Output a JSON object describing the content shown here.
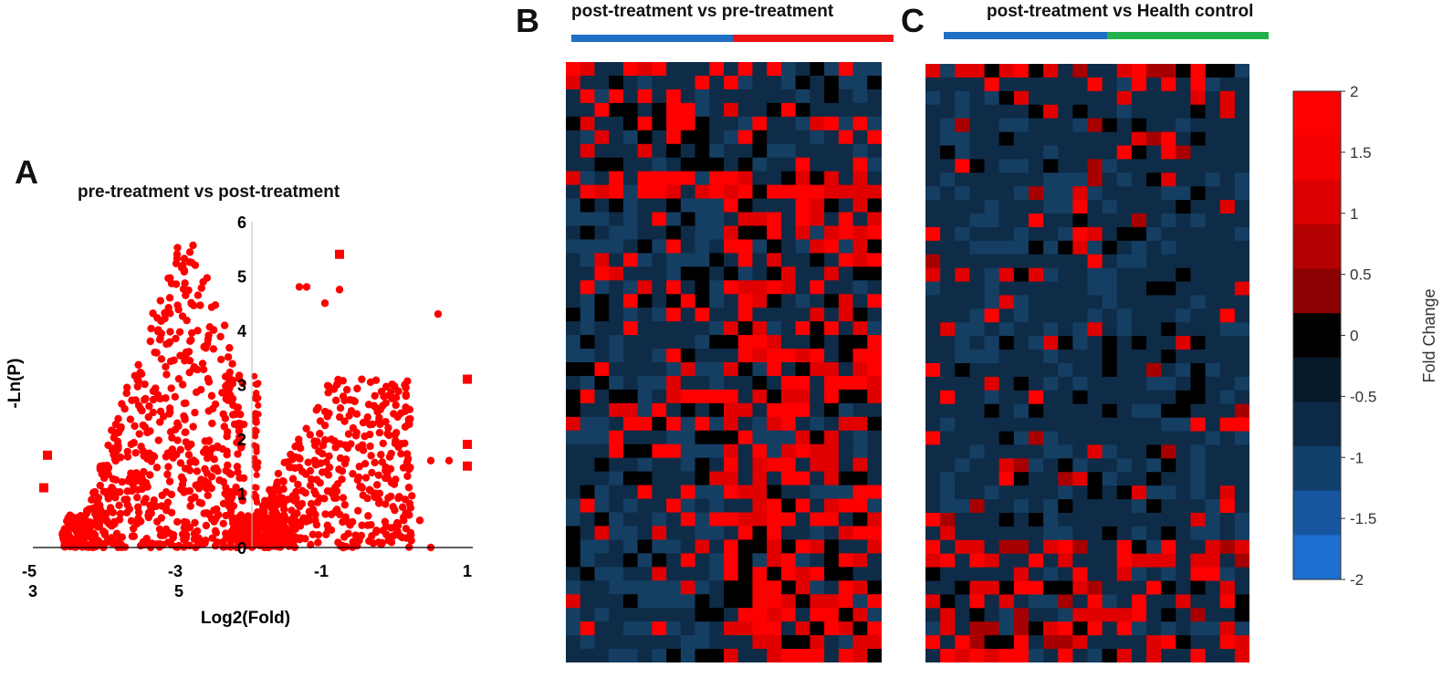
{
  "panel_letters": {
    "a": "A",
    "b": "B",
    "c": "C"
  },
  "colors": {
    "marker": "#ff0000",
    "axis": "#000000",
    "bar_blue": "#1f6fc4",
    "bar_red": "#ee1111",
    "bar_green": "#22b14c"
  },
  "chart_data": [
    {
      "panel": "A",
      "type": "scatter",
      "title": "pre-treatment vs post-treatment",
      "xlabel": "Log2(Fold)",
      "ylabel": "-Ln(P)",
      "xlim": [
        -5,
        1
      ],
      "ylim": [
        0,
        6
      ],
      "x_tick_labels": [
        {
          "x": -5,
          "line1": "-5",
          "line2": "3"
        },
        {
          "x": -3,
          "line1": "-3",
          "line2": "5"
        },
        {
          "x": -1,
          "line1": "-1",
          "line2": ""
        },
        {
          "x": 1,
          "line1": "1",
          "line2": ""
        }
      ],
      "y_ticks": [
        0,
        1,
        2,
        3,
        4,
        5,
        6
      ],
      "y_axis_at_x": -2,
      "grid": false,
      "cluster_left": {
        "x_range": [
          -4.6,
          -2.1
        ],
        "y_max_at_center": 5.9,
        "center": -2.9,
        "count": 700
      },
      "cluster_right": {
        "x_range": [
          -1.9,
          0.2
        ],
        "y_max": 3.1,
        "count": 420
      },
      "notable_points": [
        {
          "x": -4.85,
          "y": 1.1,
          "marker": "square"
        },
        {
          "x": -4.8,
          "y": 1.7,
          "marker": "square"
        },
        {
          "x": -0.8,
          "y": 5.4,
          "marker": "square"
        },
        {
          "x": 0.95,
          "y": 3.1,
          "marker": "square"
        },
        {
          "x": 0.95,
          "y": 1.9,
          "marker": "square"
        },
        {
          "x": 0.95,
          "y": 1.5,
          "marker": "square"
        },
        {
          "x": 0.55,
          "y": 4.3,
          "marker": "circle"
        },
        {
          "x": -1.25,
          "y": 4.8,
          "marker": "circle"
        },
        {
          "x": -1.35,
          "y": 4.8,
          "marker": "circle"
        },
        {
          "x": -0.8,
          "y": 4.75,
          "marker": "circle"
        },
        {
          "x": -1.0,
          "y": 4.5,
          "marker": "circle"
        },
        {
          "x": 0.7,
          "y": 1.6,
          "marker": "circle"
        },
        {
          "x": 0.45,
          "y": 1.6,
          "marker": "circle"
        },
        {
          "x": 0.3,
          "y": 0.5,
          "marker": "circle"
        },
        {
          "x": -0.75,
          "y": 0.0,
          "marker": "circle"
        },
        {
          "x": 0.45,
          "y": 0.0,
          "marker": "circle"
        }
      ]
    },
    {
      "panel": "B",
      "type": "heatmap",
      "title": "post-treatment vs pre-treatment",
      "group_bar": [
        "blue",
        "red"
      ],
      "rows": 44,
      "cols": 22,
      "colorbar": null
    },
    {
      "panel": "C",
      "type": "heatmap",
      "title": "post-treatment vs Health control",
      "group_bar": [
        "blue",
        "green"
      ],
      "rows": 44,
      "cols": 22,
      "colorbar": {
        "label": "Fold Change",
        "range": [
          -2,
          2
        ],
        "ticks": [
          {
            "value": 2,
            "label": "2"
          },
          {
            "value": 1.5,
            "label": "1.5"
          },
          {
            "value": 1,
            "label": "1"
          },
          {
            "value": 0.5,
            "label": "0.5"
          },
          {
            "value": 0,
            "label": "0"
          },
          {
            "value": -0.5,
            "label": "-0.5"
          },
          {
            "value": -1,
            "label": "-1"
          },
          {
            "value": -1.5,
            "label": "-1.5"
          },
          {
            "value": -2,
            "label": "-2"
          }
        ],
        "level_colors": [
          "#ff0000",
          "#f40000",
          "#de0000",
          "#b30000",
          "#8b0000",
          "#000000",
          "#071a2b",
          "#0c2a47",
          "#103f6b",
          "#1656a0",
          "#1d6fd0"
        ]
      }
    }
  ]
}
